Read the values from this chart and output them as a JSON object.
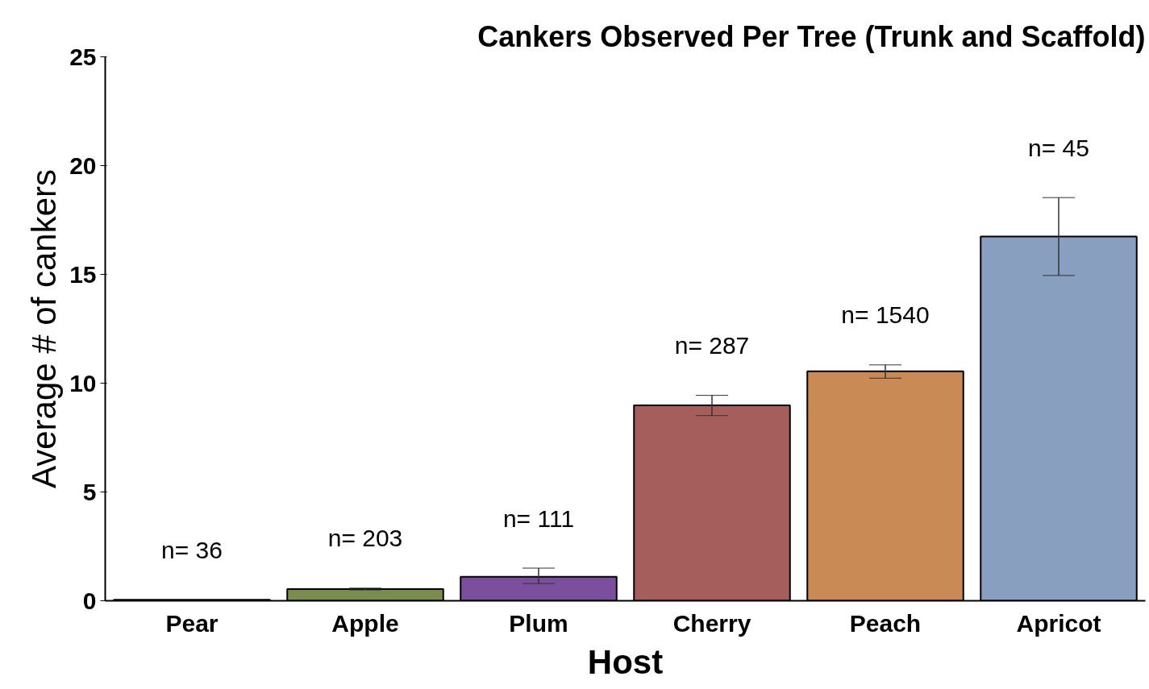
{
  "chart_data": {
    "type": "bar",
    "title": "Cankers Observed Per Tree (Trunk and Scaffold)",
    "xlabel": "Host",
    "ylabel": "Average # of cankers",
    "categories": [
      "Pear",
      "Apple",
      "Plum",
      "Cherry",
      "Peach",
      "Apricot"
    ],
    "values": [
      0.05,
      0.54,
      1.1,
      8.98,
      10.55,
      16.74
    ],
    "colors": [
      "#2f3a2a",
      "#7a8c4e",
      "#7b4f9d",
      "#a55e5c",
      "#c98a55",
      "#889fbf"
    ],
    "errors": [
      null,
      [
        0.5,
        0.58
      ],
      [
        0.79,
        1.5
      ],
      [
        8.51,
        9.44
      ],
      [
        10.23,
        10.84
      ],
      [
        14.95,
        18.53
      ]
    ],
    "ylim": [
      0,
      25
    ],
    "yticks": [
      0,
      5,
      10,
      15,
      20,
      25
    ],
    "grid": false,
    "annotations": [
      "n= 36",
      "n= 203",
      "n= 111",
      "n= 287",
      "n= 1540",
      "n= 45"
    ]
  }
}
